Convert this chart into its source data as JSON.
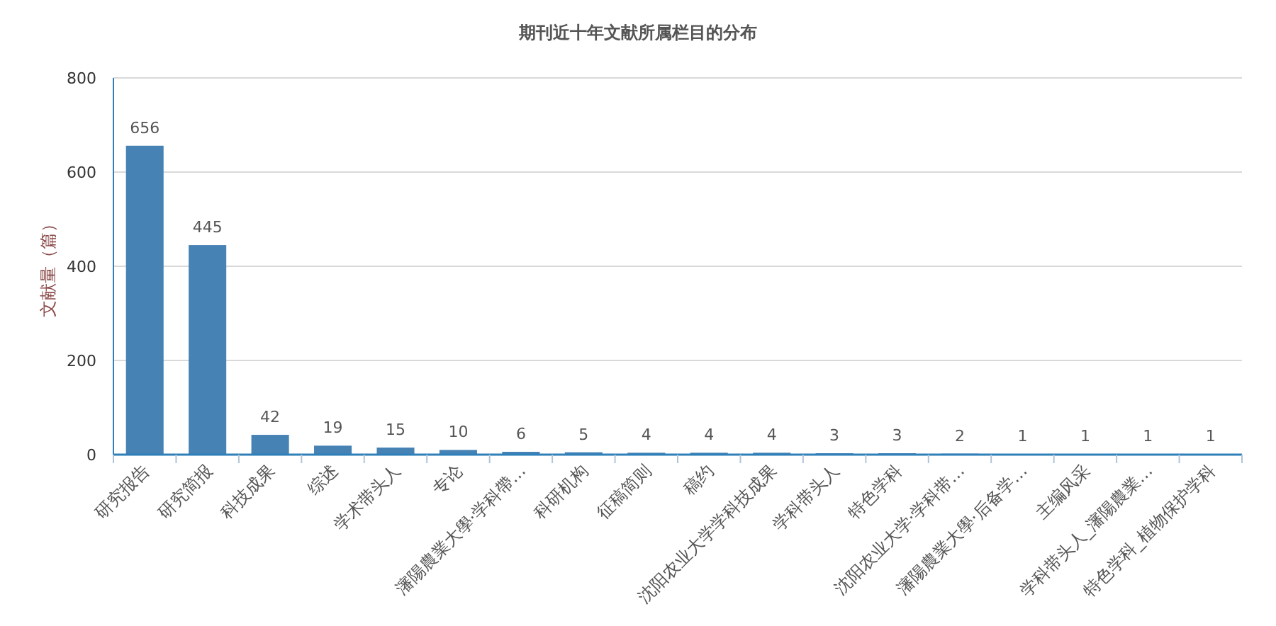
{
  "chart_data": {
    "type": "bar",
    "title": "期刊近十年文献所属栏目的分布",
    "ylabel": "文献量（篇）",
    "categories": [
      "研究报告",
      "研究简报",
      "科技成果",
      "综述",
      "学术带头人",
      "专论",
      "瀋陽農業大學·学科帶…",
      "科研机构",
      "征稿简则",
      "稿约",
      "沈阳农业大学学科技成果",
      "学科带头人",
      "特色学科",
      "沈阳农业大学·学科带…",
      "瀋陽農業大學·后备学…",
      "主编风采",
      "学科带头人_瀋陽農業…",
      "特色学科_植物保护学科"
    ],
    "values": [
      656,
      445,
      42,
      19,
      15,
      10,
      6,
      5,
      4,
      4,
      4,
      3,
      3,
      2,
      1,
      1,
      1,
      1
    ],
    "color": "#4682b4",
    "ylim": [
      0,
      800
    ],
    "yticks": [
      0,
      200,
      400,
      600,
      800
    ],
    "grid": "y",
    "data_labels": true
  }
}
